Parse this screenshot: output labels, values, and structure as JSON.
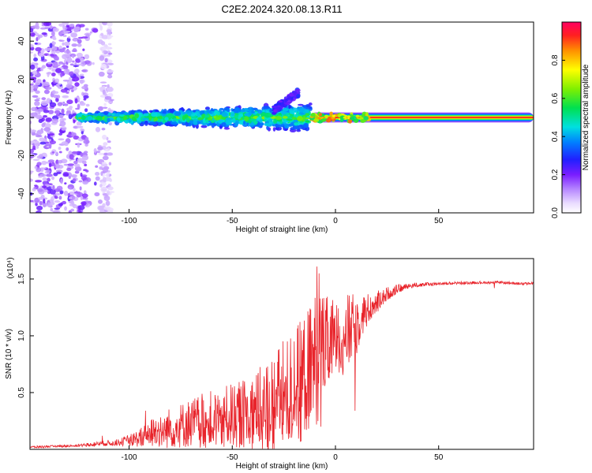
{
  "page_title": "C2E2.2024.320.08.13.R11",
  "chart_data": [
    {
      "type": "heatmap",
      "title": "C2E2.2024.320.08.13.R11",
      "xlabel": "Height of straight line (km)",
      "ylabel": "Frequency (Hz)",
      "xlim": [
        -148,
        96
      ],
      "ylim": [
        -50,
        50
      ],
      "xticks": [
        -100,
        -50,
        0,
        50
      ],
      "yticks": [
        -40,
        -20,
        0,
        20,
        40
      ],
      "grid": false,
      "colorbar": {
        "label": "Normalized spectral amplitude",
        "range": [
          0.0,
          1.0
        ],
        "ticks": [
          0.0,
          0.2,
          0.4,
          0.6,
          0.8
        ],
        "tick_labels": [
          "0.0",
          "0.2",
          "0.4",
          "0.6",
          "0.8"
        ],
        "colormap": "rainbow (white-violet-blue-cyan-green-yellow-red)"
      },
      "features": {
        "noise_region_x": [
          -148,
          -108
        ],
        "dispersed_band_x": [
          -125,
          -12
        ],
        "ridge_x": [
          -12,
          96
        ],
        "ridge_frequency": 0,
        "upward_branch": {
          "x": [
            -30,
            -18
          ],
          "frequency": [
            4,
            13
          ]
        }
      }
    },
    {
      "type": "line",
      "xlabel": "Height of straight line (km)",
      "ylabel": "SNR (10 * v/v)",
      "y_multiplier": "(x10⁴)",
      "xlim": [
        -148,
        96
      ],
      "ylim": [
        0,
        1.68
      ],
      "xticks": [
        -100,
        -50,
        0,
        50
      ],
      "yticks": [
        0.5,
        1.0,
        1.5
      ],
      "ytick_labels": [
        "0.5",
        "1.0",
        "1.5"
      ],
      "grid": false,
      "series": [
        {
          "color": "#e8242b",
          "envelope": {
            "x": [
              -148,
              -130,
              -120,
              -115,
              -105,
              -100,
              -95,
              -90,
              -85,
              -80,
              -75,
              -70,
              -65,
              -60,
              -55,
              -50,
              -45,
              -40,
              -35,
              -30,
              -25,
              -20,
              -18,
              -15,
              -12,
              -10,
              -8,
              -5,
              0,
              5,
              8,
              10,
              12,
              15,
              20,
              25,
              30,
              35,
              40,
              50,
              60,
              70,
              80,
              90,
              96
            ],
            "mean": [
              0.02,
              0.03,
              0.04,
              0.05,
              0.06,
              0.08,
              0.1,
              0.14,
              0.17,
              0.19,
              0.21,
              0.23,
              0.25,
              0.26,
              0.28,
              0.3,
              0.31,
              0.33,
              0.36,
              0.4,
              0.46,
              0.52,
              0.58,
              0.65,
              0.72,
              0.78,
              0.85,
              0.9,
              0.97,
              1.02,
              1.06,
              1.1,
              1.16,
              1.22,
              1.3,
              1.37,
              1.41,
              1.44,
              1.45,
              1.46,
              1.465,
              1.47,
              1.47,
              1.46,
              1.46
            ],
            "spread": [
              0.01,
              0.01,
              0.015,
              0.02,
              0.03,
              0.05,
              0.08,
              0.12,
              0.16,
              0.18,
              0.2,
              0.22,
              0.24,
              0.26,
              0.27,
              0.28,
              0.3,
              0.33,
              0.4,
              0.45,
              0.5,
              0.55,
              0.55,
              0.55,
              0.55,
              0.6,
              0.6,
              0.45,
              0.35,
              0.35,
              0.3,
              0.3,
              0.22,
              0.15,
              0.1,
              0.06,
              0.04,
              0.025,
              0.02,
              0.015,
              0.012,
              0.012,
              0.012,
              0.012,
              0.012
            ]
          },
          "spikes": [
            {
              "x": -113,
              "y": 0.12
            },
            {
              "x": -92,
              "y": 0.34
            },
            {
              "x": -9,
              "y": 1.61
            },
            {
              "x": -8,
              "y": 1.55
            },
            {
              "x": -7,
              "y": 0.2
            },
            {
              "x": 9.5,
              "y": 0.34
            },
            {
              "x": 77,
              "y": 1.42
            }
          ]
        }
      ]
    }
  ]
}
